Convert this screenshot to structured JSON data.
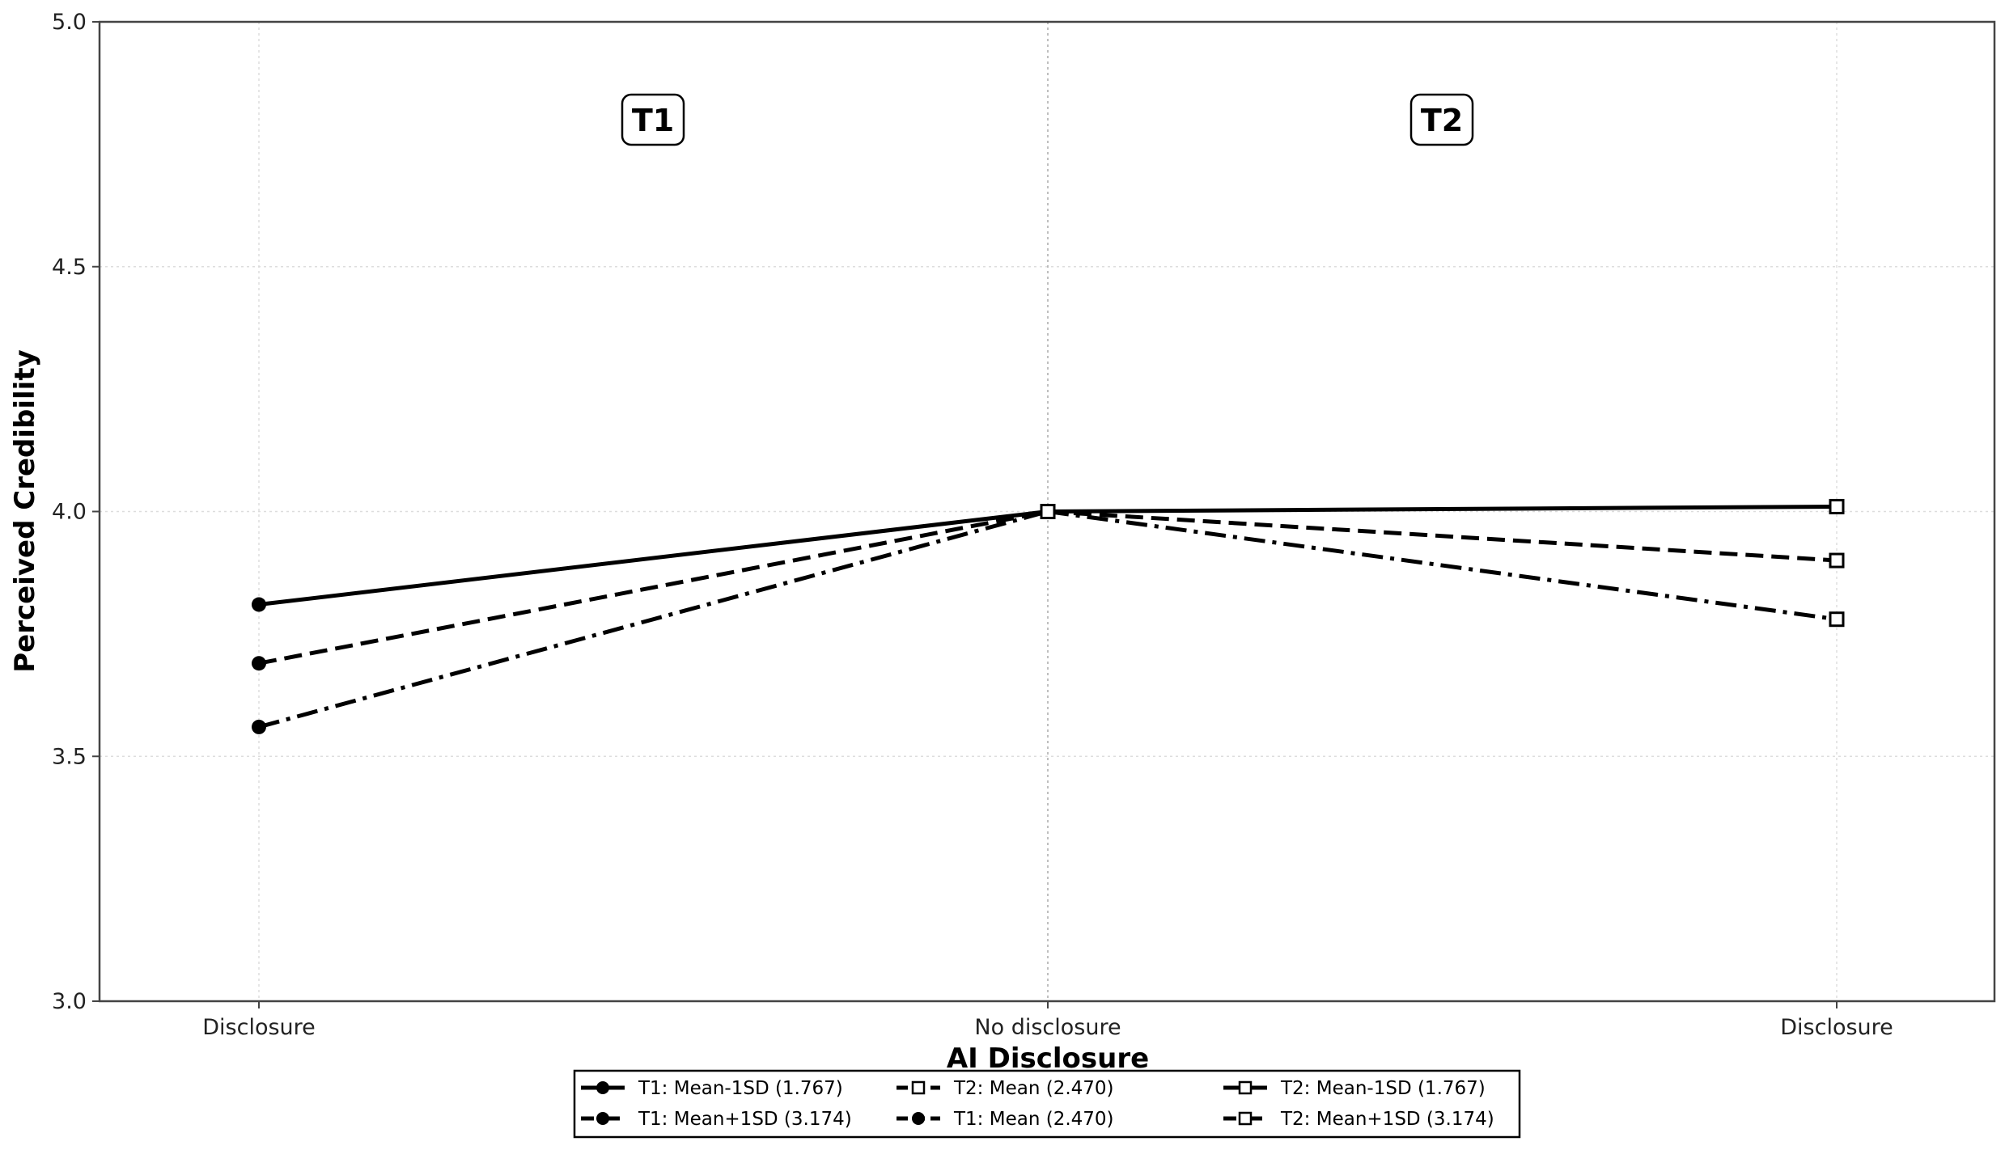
{
  "chart_data": {
    "type": "line",
    "xlabel": "AI Disclosure",
    "ylabel": "Perceived Credibility",
    "ylim": [
      3.0,
      5.0
    ],
    "yticks": [
      "3.0",
      "3.5",
      "4.0",
      "4.5",
      "5.0"
    ],
    "categories": [
      "Disclosure",
      "No disclosure",
      "Disclosure"
    ],
    "grid": true,
    "legend_placement": "bottom-center",
    "panel_labels": [
      "T1",
      "T2"
    ],
    "series": [
      {
        "name": "T1: Mean-1SD (1.767)",
        "x": [
          0,
          1
        ],
        "values": [
          3.81,
          4.0
        ],
        "dash": "solid",
        "marker": "filled-circle"
      },
      {
        "name": "T1: Mean (2.470)",
        "x": [
          0,
          1
        ],
        "values": [
          3.69,
          4.0
        ],
        "dash": "dashed",
        "marker": "filled-circle"
      },
      {
        "name": "T1: Mean+1SD (3.174)",
        "x": [
          0,
          1
        ],
        "values": [
          3.56,
          4.0
        ],
        "dash": "dashdot",
        "marker": "filled-circle"
      },
      {
        "name": "T2: Mean-1SD (1.767)",
        "x": [
          1,
          2
        ],
        "values": [
          4.0,
          4.01
        ],
        "dash": "solid",
        "marker": "open-square"
      },
      {
        "name": "T2: Mean (2.470)",
        "x": [
          1,
          2
        ],
        "values": [
          4.0,
          3.9
        ],
        "dash": "dashed",
        "marker": "open-square"
      },
      {
        "name": "T2: Mean+1SD (3.174)",
        "x": [
          1,
          2
        ],
        "values": [
          4.0,
          3.78
        ],
        "dash": "dashdot",
        "marker": "open-square"
      }
    ],
    "legend_order": [
      0,
      2,
      4,
      1,
      3,
      5
    ],
    "colors": {
      "line": "#000000",
      "grid": "#dddddd",
      "axis": "#444444"
    }
  }
}
